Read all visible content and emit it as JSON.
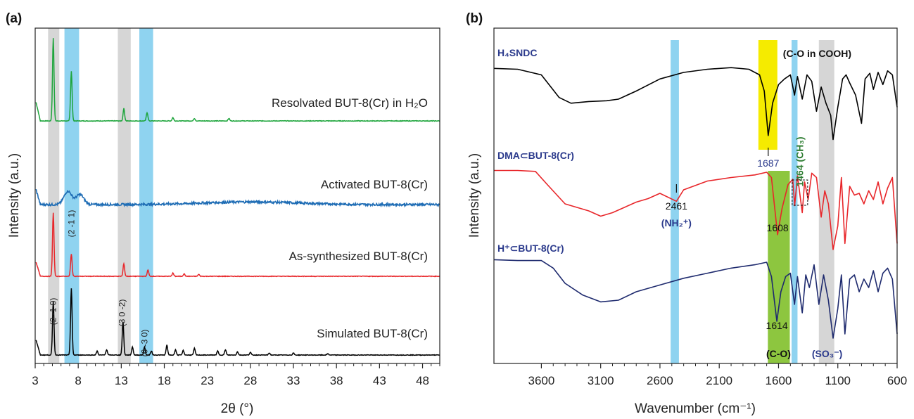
{
  "colors": {
    "gray_band": "#d6d6d6",
    "blue_band": "#8fd3f0",
    "yellow_band": "#f5eb00",
    "green_band": "#8dc63f",
    "navy_text": "#2b3a8c",
    "green_text": "#2e7d32"
  },
  "chart_data": [
    {
      "panel": "(a)",
      "type": "line",
      "xlabel": "2θ (°)",
      "ylabel": "Intensity (a.u.)",
      "xlim": [
        3,
        50
      ],
      "xticks": [
        "3",
        "8",
        "13",
        "18",
        "23",
        "28",
        "33",
        "38",
        "43",
        "48"
      ],
      "bands": [
        {
          "from": 4.5,
          "to": 5.8,
          "color": "gray"
        },
        {
          "from": 6.4,
          "to": 8.1,
          "color": "blue"
        },
        {
          "from": 12.6,
          "to": 14.1,
          "color": "gray"
        },
        {
          "from": 15.1,
          "to": 16.7,
          "color": "blue"
        }
      ],
      "plane_labels": [
        {
          "text": "(2 -1 0)",
          "x": 5.1,
          "series": "Simulated BUT-8(Cr)"
        },
        {
          "text": "(2 -1 1)",
          "x": 7.2,
          "series": "As-synthesized BUT-8(Cr)"
        },
        {
          "text": "(3 0 -2)",
          "x": 13.1,
          "series": "Simulated BUT-8(Cr)"
        },
        {
          "text": "(6 -3 0)",
          "x": 15.7,
          "series": "Simulated BUT-8(Cr)"
        }
      ],
      "series": [
        {
          "name": "Resolvated BUT-8(Cr) in H₂O",
          "color": "#1ea53c",
          "peaks": [
            [
              5.1,
              1.0
            ],
            [
              7.2,
              0.6
            ],
            [
              13.3,
              0.15
            ],
            [
              16.0,
              0.1
            ],
            [
              19.0,
              0.04
            ],
            [
              21.5,
              0.03
            ],
            [
              25.5,
              0.03
            ]
          ]
        },
        {
          "name": "Activated BUT-8(Cr)",
          "color": "#1f6db5",
          "peaks": [
            [
              6.8,
              0.2
            ],
            [
              8.2,
              0.15
            ]
          ]
        },
        {
          "name": "As-synthesized BUT-8(Cr)",
          "color": "#e8262a",
          "peaks": [
            [
              5.1,
              1.0
            ],
            [
              7.2,
              0.35
            ],
            [
              13.3,
              0.2
            ],
            [
              16.1,
              0.1
            ],
            [
              19.0,
              0.05
            ],
            [
              20.3,
              0.04
            ],
            [
              22.0,
              0.03
            ]
          ]
        },
        {
          "name": "Simulated BUT-8(Cr)",
          "color": "#000000",
          "peaks": [
            [
              5.1,
              0.8
            ],
            [
              7.2,
              1.0
            ],
            [
              10.2,
              0.06
            ],
            [
              11.3,
              0.08
            ],
            [
              13.2,
              0.5
            ],
            [
              14.3,
              0.12
            ],
            [
              15.7,
              0.12
            ],
            [
              16.5,
              0.06
            ],
            [
              18.3,
              0.15
            ],
            [
              19.3,
              0.08
            ],
            [
              20.2,
              0.07
            ],
            [
              21.5,
              0.1
            ],
            [
              24.2,
              0.06
            ],
            [
              25.1,
              0.08
            ],
            [
              26.5,
              0.05
            ],
            [
              28.0,
              0.04
            ],
            [
              30.2,
              0.03
            ],
            [
              33.0,
              0.03
            ],
            [
              37.0,
              0.02
            ]
          ]
        }
      ]
    },
    {
      "panel": "(b)",
      "type": "line",
      "xlabel": "Wavenumber (cm⁻¹)",
      "ylabel": "Intensity (a.u.)",
      "xlim": [
        4000,
        600
      ],
      "xticks": [
        "3600",
        "3100",
        "2600",
        "2100",
        "1600",
        "1100",
        "600"
      ],
      "bands": [
        {
          "from": 2510,
          "to": 2440,
          "color": "blue"
        },
        {
          "from": 1770,
          "to": 1610,
          "color": "yellow"
        },
        {
          "from": 1690,
          "to": 1505,
          "color": "green"
        },
        {
          "from": 1490,
          "to": 1440,
          "color": "blue"
        },
        {
          "from": 1260,
          "to": 1130,
          "color": "gray"
        }
      ],
      "series": [
        {
          "name": "H₄SNDC",
          "color": "#000000",
          "points": [
            [
              4000,
              0.98
            ],
            [
              3800,
              0.97
            ],
            [
              3600,
              0.9
            ],
            [
              3450,
              0.62
            ],
            [
              3350,
              0.55
            ],
            [
              3200,
              0.57
            ],
            [
              3050,
              0.58
            ],
            [
              2950,
              0.6
            ],
            [
              2800,
              0.7
            ],
            [
              2600,
              0.85
            ],
            [
              2400,
              0.93
            ],
            [
              2200,
              0.97
            ],
            [
              2000,
              0.99
            ],
            [
              1850,
              0.97
            ],
            [
              1760,
              0.9
            ],
            [
              1720,
              0.7
            ],
            [
              1687,
              0.15
            ],
            [
              1650,
              0.55
            ],
            [
              1600,
              0.78
            ],
            [
              1550,
              0.85
            ],
            [
              1500,
              0.9
            ],
            [
              1465,
              0.65
            ],
            [
              1440,
              0.88
            ],
            [
              1400,
              0.6
            ],
            [
              1360,
              0.9
            ],
            [
              1320,
              0.82
            ],
            [
              1280,
              0.45
            ],
            [
              1240,
              0.75
            ],
            [
              1200,
              0.55
            ],
            [
              1160,
              0.4
            ],
            [
              1140,
              0.1
            ],
            [
              1100,
              0.5
            ],
            [
              1060,
              0.85
            ],
            [
              1030,
              0.9
            ],
            [
              1000,
              0.8
            ],
            [
              950,
              0.65
            ],
            [
              900,
              0.3
            ],
            [
              870,
              0.85
            ],
            [
              830,
              0.92
            ],
            [
              800,
              0.72
            ],
            [
              760,
              0.93
            ],
            [
              720,
              0.78
            ],
            [
              680,
              0.95
            ],
            [
              640,
              0.9
            ],
            [
              600,
              0.5
            ]
          ]
        },
        {
          "name": "DMA⊂BUT-8(Cr)",
          "color": "#e8262a",
          "points": [
            [
              4000,
              0.98
            ],
            [
              3800,
              0.98
            ],
            [
              3650,
              0.97
            ],
            [
              3550,
              0.82
            ],
            [
              3400,
              0.6
            ],
            [
              3200,
              0.52
            ],
            [
              3100,
              0.46
            ],
            [
              3000,
              0.5
            ],
            [
              2900,
              0.56
            ],
            [
              2800,
              0.62
            ],
            [
              2700,
              0.66
            ],
            [
              2600,
              0.72
            ],
            [
              2461,
              0.63
            ],
            [
              2400,
              0.76
            ],
            [
              2200,
              0.86
            ],
            [
              2000,
              0.9
            ],
            [
              1800,
              0.93
            ],
            [
              1700,
              0.96
            ],
            [
              1660,
              0.9
            ],
            [
              1608,
              0.25
            ],
            [
              1570,
              0.55
            ],
            [
              1520,
              0.82
            ],
            [
              1480,
              0.88
            ],
            [
              1464,
              0.58
            ],
            [
              1440,
              0.92
            ],
            [
              1400,
              0.5
            ],
            [
              1380,
              0.85
            ],
            [
              1350,
              0.65
            ],
            [
              1320,
              0.95
            ],
            [
              1280,
              0.9
            ],
            [
              1240,
              0.45
            ],
            [
              1210,
              0.75
            ],
            [
              1180,
              0.6
            ],
            [
              1140,
              0.08
            ],
            [
              1100,
              0.35
            ],
            [
              1070,
              0.9
            ],
            [
              1040,
              0.15
            ],
            [
              1000,
              0.8
            ],
            [
              960,
              0.7
            ],
            [
              920,
              0.72
            ],
            [
              880,
              0.6
            ],
            [
              840,
              0.75
            ],
            [
              800,
              0.65
            ],
            [
              760,
              0.85
            ],
            [
              720,
              0.6
            ],
            [
              680,
              0.78
            ],
            [
              640,
              0.9
            ],
            [
              600,
              0.15
            ]
          ]
        },
        {
          "name": "H⁺⊂BUT-8(Cr)",
          "color": "#1e2a6e",
          "points": [
            [
              4000,
              0.98
            ],
            [
              3800,
              0.97
            ],
            [
              3600,
              0.97
            ],
            [
              3500,
              0.88
            ],
            [
              3400,
              0.7
            ],
            [
              3250,
              0.56
            ],
            [
              3100,
              0.48
            ],
            [
              2950,
              0.5
            ],
            [
              2800,
              0.6
            ],
            [
              2600,
              0.68
            ],
            [
              2400,
              0.76
            ],
            [
              2200,
              0.82
            ],
            [
              2000,
              0.88
            ],
            [
              1800,
              0.92
            ],
            [
              1700,
              0.95
            ],
            [
              1660,
              0.78
            ],
            [
              1614,
              0.25
            ],
            [
              1580,
              0.6
            ],
            [
              1540,
              0.78
            ],
            [
              1500,
              0.82
            ],
            [
              1465,
              0.45
            ],
            [
              1440,
              0.78
            ],
            [
              1400,
              0.35
            ],
            [
              1370,
              0.8
            ],
            [
              1340,
              0.65
            ],
            [
              1300,
              0.92
            ],
            [
              1260,
              0.45
            ],
            [
              1220,
              0.8
            ],
            [
              1180,
              0.5
            ],
            [
              1140,
              0.05
            ],
            [
              1100,
              0.4
            ],
            [
              1070,
              0.8
            ],
            [
              1040,
              0.1
            ],
            [
              1000,
              0.75
            ],
            [
              960,
              0.8
            ],
            [
              920,
              0.6
            ],
            [
              880,
              0.75
            ],
            [
              840,
              0.65
            ],
            [
              800,
              0.85
            ],
            [
              760,
              0.6
            ],
            [
              720,
              0.82
            ],
            [
              680,
              0.88
            ],
            [
              640,
              0.75
            ],
            [
              600,
              0.1
            ]
          ]
        }
      ],
      "annotations": {
        "cooh_top": "(C-O in COOH)",
        "v1687": "1687",
        "ch3": "1464 (CH₃)",
        "v2461": "2461",
        "nh2": "(NH₂⁺)",
        "cooh_mid": "(C-O in COOH)",
        "v1608": "1608",
        "cooh_bot": "(C-O in COOH)",
        "v1614": "1614",
        "co": "(C-O)",
        "so3": "(SO₃⁻)"
      }
    }
  ]
}
